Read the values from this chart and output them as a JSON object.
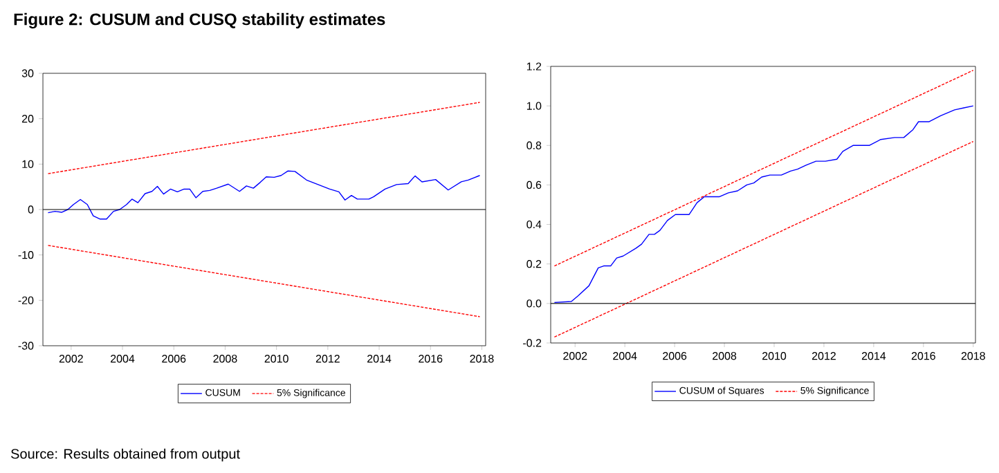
{
  "chart_data": [
    {
      "type": "line",
      "title": "Figure 2: CUSUM and CUSQ stability estimates",
      "annotations": [
        "Source: Results obtained from output"
      ],
      "xlim": [
        2000.9,
        2018.15
      ],
      "xticks": [
        2002,
        2004,
        2006,
        2008,
        2010,
        2012,
        2014,
        2016,
        2018
      ],
      "ylim": [
        -30,
        30
      ],
      "yticks": [
        -30,
        -20,
        -10,
        0,
        10,
        20,
        30
      ],
      "legend": "bottom",
      "marker": "none",
      "ref_lines": [
        {
          "axis": "y",
          "value": 0,
          "color": "#000000"
        }
      ],
      "series": [
        {
          "name": "CUSUM",
          "color": "#0000ff",
          "line_style": "solid",
          "x": [
            2001.1,
            2001.37,
            2001.64,
            2001.87,
            2002.09,
            2002.36,
            2002.63,
            2002.86,
            2003.13,
            2003.38,
            2003.65,
            2003.89,
            2004.16,
            2004.37,
            2004.6,
            2004.88,
            2005.15,
            2005.36,
            2005.6,
            2005.87,
            2006.14,
            2006.4,
            2006.62,
            2006.86,
            2007.13,
            2007.4,
            2007.67,
            2008.12,
            2008.56,
            2008.83,
            2009.1,
            2009.37,
            2009.6,
            2009.91,
            2010.18,
            2010.45,
            2010.72,
            2011.17,
            2011.62,
            2012.07,
            2012.43,
            2012.67,
            2012.92,
            2013.15,
            2013.6,
            2013.78,
            2014.23,
            2014.68,
            2015.13,
            2015.4,
            2015.67,
            2016.2,
            2016.69,
            2017.2,
            2017.47,
            2017.92
          ],
          "values": [
            -0.7,
            -0.4,
            -0.6,
            0,
            1.1,
            2.2,
            1.1,
            -1.4,
            -2.1,
            -2.1,
            -0.4,
            0,
            1.1,
            2.3,
            1.5,
            3.5,
            4.0,
            5.1,
            3.4,
            4.5,
            3.9,
            4.5,
            4.5,
            2.6,
            4.0,
            4.2,
            4.7,
            5.6,
            4.0,
            5.2,
            4.7,
            6.0,
            7.2,
            7.1,
            7.5,
            8.5,
            8.4,
            6.5,
            5.5,
            4.5,
            3.9,
            2.1,
            3.1,
            2.3,
            2.3,
            2.8,
            4.5,
            5.5,
            5.7,
            7.4,
            6.1,
            6.6,
            4.3,
            6.1,
            6.5,
            7.5
          ]
        },
        {
          "name": "5% Significance",
          "color": "#ff0000",
          "line_style": "dashed",
          "x": [
            2001.1,
            2017.92
          ],
          "values": [
            7.9,
            23.6
          ]
        },
        {
          "color": "#ff0000",
          "line_style": "dashed",
          "x": [
            2001.1,
            2017.92
          ],
          "values": [
            -7.9,
            -23.6
          ]
        }
      ]
    },
    {
      "type": "line",
      "xlim": [
        2001.02,
        2018.09
      ],
      "xticks": [
        2002,
        2004,
        2006,
        2008,
        2010,
        2012,
        2014,
        2016,
        2018
      ],
      "ylim": [
        -0.2,
        1.2
      ],
      "yticks": [
        -0.2,
        {
          "value": 0,
          "label": "0.0"
        },
        0.2,
        0.4,
        0.6,
        0.8,
        {
          "value": 1,
          "label": "1.0"
        },
        1.2
      ],
      "legend": "bottom",
      "marker": "none",
      "ref_lines": [
        {
          "axis": "y",
          "value": 0,
          "color": "#000000"
        }
      ],
      "series": [
        {
          "name": "CUSUM of Squares",
          "color": "#0000ff",
          "line_style": "solid",
          "x": [
            2001.17,
            2001.85,
            2002.13,
            2002.56,
            2002.93,
            2003.15,
            2003.43,
            2003.67,
            2003.93,
            2004.45,
            2004.67,
            2004.97,
            2005.19,
            2005.41,
            2005.71,
            2006.03,
            2006.58,
            2006.9,
            2007.19,
            2007.79,
            2008.16,
            2008.53,
            2008.9,
            2009.18,
            2009.5,
            2009.83,
            2010.29,
            2010.66,
            2010.94,
            2011.28,
            2011.68,
            2012.06,
            2012.52,
            2012.76,
            2013.17,
            2013.82,
            2014.28,
            2014.84,
            2015.21,
            2015.58,
            2015.8,
            2016.23,
            2016.69,
            2017.25,
            2017.62,
            2018.0
          ],
          "values": [
            0.005,
            0.01,
            0.04,
            0.09,
            0.18,
            0.19,
            0.19,
            0.23,
            0.24,
            0.28,
            0.3,
            0.35,
            0.35,
            0.37,
            0.42,
            0.45,
            0.45,
            0.51,
            0.54,
            0.54,
            0.56,
            0.57,
            0.6,
            0.61,
            0.64,
            0.65,
            0.65,
            0.67,
            0.68,
            0.7,
            0.72,
            0.72,
            0.73,
            0.77,
            0.8,
            0.8,
            0.83,
            0.84,
            0.84,
            0.88,
            0.92,
            0.92,
            0.95,
            0.98,
            0.99,
            1.0
          ]
        },
        {
          "name": "5% Significance",
          "color": "#ff0000",
          "line_style": "dashed",
          "x": [
            2001.17,
            2018.0
          ],
          "values": [
            0.19,
            1.18
          ]
        },
        {
          "color": "#ff0000",
          "line_style": "dashed",
          "x": [
            2001.17,
            2018.0
          ],
          "values": [
            -0.17,
            0.82
          ]
        }
      ]
    }
  ]
}
